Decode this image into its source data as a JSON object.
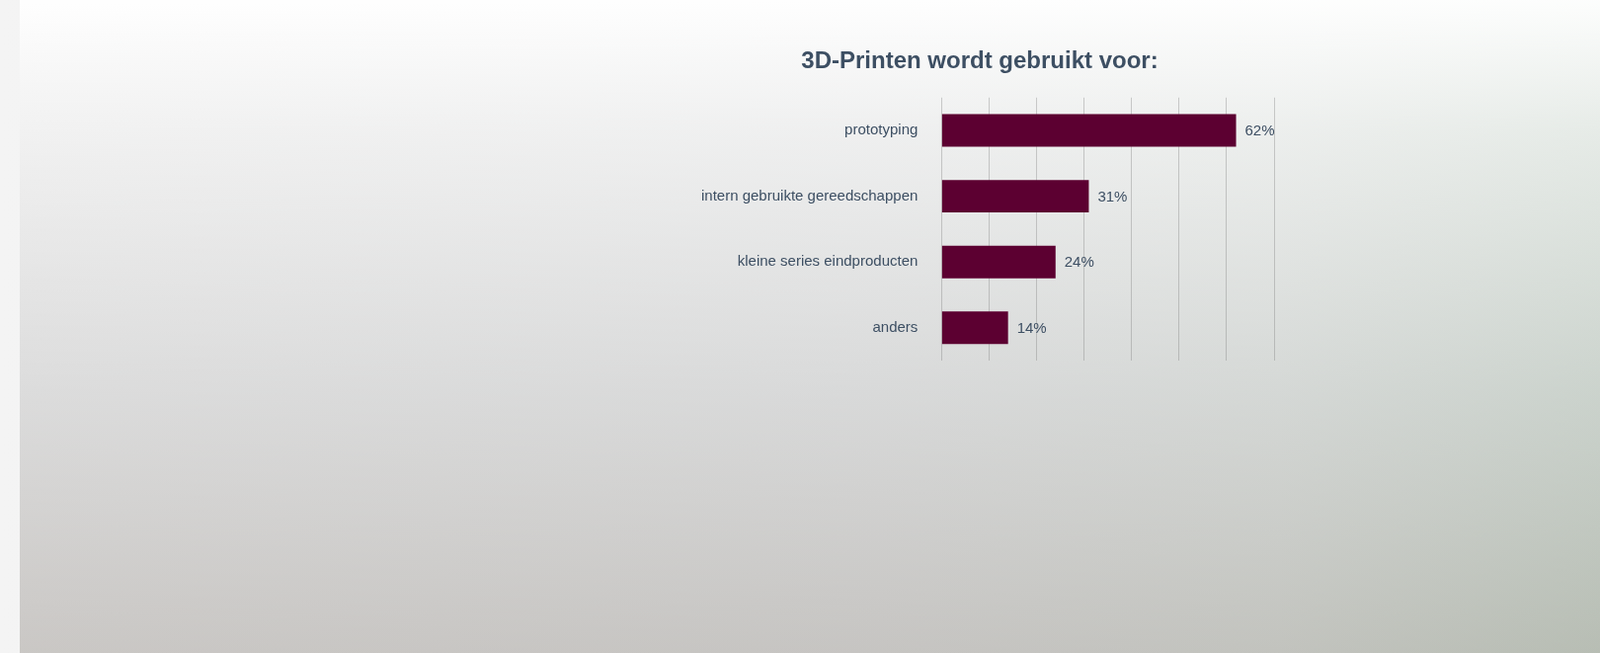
{
  "chart_data": {
    "type": "bar",
    "orientation": "horizontal",
    "title": "3D-Printen wordt gebruikt voor:",
    "categories": [
      "prototyping",
      "intern gebruikte gereedschappen",
      "kleine series eindproducten",
      "anders"
    ],
    "values": [
      62,
      31,
      24,
      14
    ],
    "value_labels": [
      "62%",
      "31%",
      "24%",
      "14%"
    ],
    "color": "#5c0031",
    "xlim": [
      0,
      70
    ],
    "xticks": [
      0,
      10,
      20,
      30,
      40,
      50,
      60,
      70
    ],
    "grid": true,
    "data_labels": true,
    "tick_labels": "y"
  }
}
